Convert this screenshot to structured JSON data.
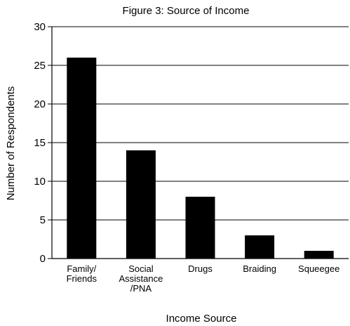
{
  "chart_data": {
    "type": "bar",
    "title": "Figure 3: Source of Income",
    "xlabel": "Income Source",
    "ylabel": "Number of Respondents",
    "categories": [
      "Family/\nFriends",
      "Social\nAssistance\n/PNA",
      "Drugs",
      "Braiding",
      "Squeegee"
    ],
    "values": [
      26,
      14,
      8,
      3,
      1
    ],
    "ylim": [
      0,
      30
    ],
    "yticks": [
      0,
      5,
      10,
      15,
      20,
      25,
      30
    ],
    "grid": true,
    "legend": "none",
    "colors": {
      "bar": "#000000",
      "grid": "#000000",
      "axis": "#000000"
    }
  }
}
